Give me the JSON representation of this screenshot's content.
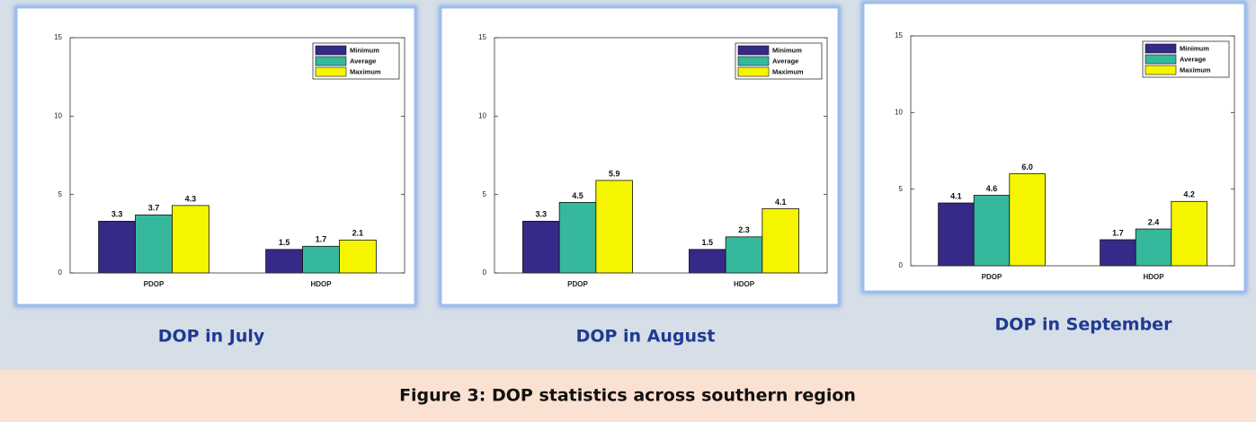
{
  "figure_caption": "Figure 3: DOP statistics across southern region",
  "chart_data": [
    {
      "type": "bar",
      "title": "DOP in July",
      "categories": [
        "PDOP",
        "HDOP"
      ],
      "series": [
        {
          "name": "Minimum",
          "color": "#352a87",
          "values": [
            3.3,
            1.5
          ]
        },
        {
          "name": "Average",
          "color": "#36b89c",
          "values": [
            3.7,
            1.7
          ]
        },
        {
          "name": "Maximum",
          "color": "#f5f500",
          "values": [
            4.3,
            2.1
          ]
        }
      ],
      "ylim": [
        0,
        15
      ],
      "yticks": [
        0,
        5,
        10,
        15
      ],
      "grid": false,
      "legend": "upper right"
    },
    {
      "type": "bar",
      "title": "DOP in August",
      "categories": [
        "PDOP",
        "HDOP"
      ],
      "series": [
        {
          "name": "Minimum",
          "color": "#352a87",
          "values": [
            3.3,
            1.5
          ]
        },
        {
          "name": "Average",
          "color": "#36b89c",
          "values": [
            4.5,
            2.3
          ]
        },
        {
          "name": "Maximum",
          "color": "#f5f500",
          "values": [
            5.9,
            4.1
          ]
        }
      ],
      "ylim": [
        0,
        15
      ],
      "yticks": [
        0,
        5,
        10,
        15
      ],
      "grid": false,
      "legend": "upper right"
    },
    {
      "type": "bar",
      "title": "DOP in September",
      "categories": [
        "PDOP",
        "HDOP"
      ],
      "series": [
        {
          "name": "Minimum",
          "color": "#352a87",
          "values": [
            4.1,
            1.7
          ]
        },
        {
          "name": "Average",
          "color": "#36b89c",
          "values": [
            4.6,
            2.4
          ]
        },
        {
          "name": "Maximum",
          "color": "#f5f500",
          "values": [
            6.0,
            4.2
          ],
          "value_labels": [
            "6.0",
            "4.2"
          ]
        }
      ],
      "ylim": [
        0,
        15
      ],
      "yticks": [
        0,
        5,
        10,
        15
      ],
      "grid": false,
      "legend": "upper right"
    }
  ]
}
